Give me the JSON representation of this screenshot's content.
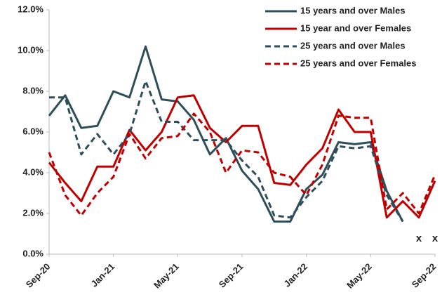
{
  "chart_data": {
    "type": "line",
    "categories": [
      "Sep-20",
      null,
      null,
      null,
      "Jan-21",
      null,
      null,
      null,
      "May-21",
      null,
      null,
      null,
      "Sep-21",
      null,
      null,
      null,
      "Jan-22",
      null,
      null,
      null,
      "May-22",
      null,
      null,
      null,
      "Sep-22"
    ],
    "series": [
      {
        "name": "15 years and over Males",
        "color": "#2e4e5a",
        "dashed": false,
        "values": [
          6.8,
          7.8,
          6.2,
          6.3,
          8.0,
          7.7,
          10.2,
          7.6,
          7.5,
          6.6,
          4.9,
          5.7,
          4.1,
          3.2,
          1.6,
          1.6,
          3.2,
          3.9,
          5.5,
          5.4,
          5.5,
          3.1,
          1.6,
          null,
          null
        ]
      },
      {
        "name": "15 year and over Females",
        "color": "#c00000",
        "dashed": false,
        "values": [
          4.5,
          3.5,
          2.6,
          4.3,
          4.3,
          6.1,
          5.1,
          6.0,
          7.7,
          7.8,
          6.2,
          5.5,
          6.3,
          6.3,
          3.5,
          3.4,
          4.4,
          5.2,
          7.1,
          6.0,
          6.0,
          1.8,
          2.6,
          1.8,
          3.6
        ]
      },
      {
        "name": "25 years and over Males",
        "color": "#2e4e5a",
        "dashed": true,
        "values": [
          7.7,
          7.7,
          4.9,
          5.9,
          4.9,
          5.9,
          8.5,
          6.5,
          6.5,
          5.6,
          5.6,
          5.6,
          4.6,
          3.8,
          1.9,
          1.8,
          2.8,
          3.6,
          5.3,
          5.2,
          5.3,
          2.9,
          1.6,
          null,
          null
        ]
      },
      {
        "name": "25 years and over Females",
        "color": "#c00000",
        "dashed": true,
        "values": [
          5.0,
          2.9,
          1.9,
          3.0,
          3.8,
          5.9,
          4.7,
          5.7,
          5.8,
          6.9,
          6.0,
          4.0,
          5.1,
          5.0,
          4.0,
          3.8,
          2.9,
          4.4,
          6.8,
          6.7,
          6.7,
          2.2,
          3.0,
          2.0,
          3.9
        ]
      }
    ],
    "annotations": [
      "x",
      "x"
    ],
    "ylim": [
      0,
      12
    ],
    "yticks": [
      {
        "value": 0,
        "label": "0.0%"
      },
      {
        "value": 2,
        "label": "2.0%"
      },
      {
        "value": 4,
        "label": "4.0%"
      },
      {
        "value": 6,
        "label": "6.0%"
      },
      {
        "value": 8,
        "label": "8.0%"
      },
      {
        "value": 10,
        "label": "10.0%"
      },
      {
        "value": 12,
        "label": "12.0%"
      }
    ],
    "legend": "upper right",
    "grid": false
  }
}
